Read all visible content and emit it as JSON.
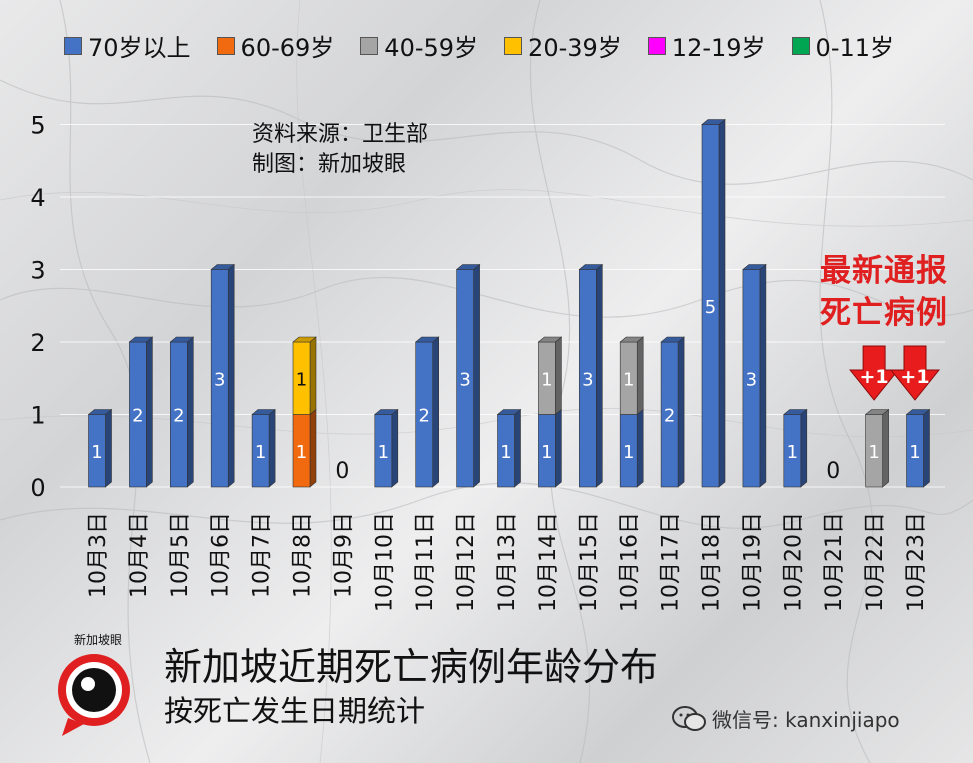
{
  "chart_data": {
    "type": "bar",
    "stacked": true,
    "categories": [
      "10月3日",
      "10月4日",
      "10月5日",
      "10月6日",
      "10月7日",
      "10月8日",
      "10月9日",
      "10月10日",
      "10月11日",
      "10月12日",
      "10月13日",
      "10月14日",
      "10月15日",
      "10月16日",
      "10月17日",
      "10月18日",
      "10月19日",
      "10月20日",
      "10月21日",
      "10月22日",
      "10月23日"
    ],
    "series": [
      {
        "name": "70岁以上",
        "color": "#4472c4",
        "values": [
          1,
          2,
          2,
          3,
          1,
          0,
          0,
          1,
          2,
          3,
          1,
          1,
          3,
          1,
          2,
          5,
          3,
          1,
          0,
          0,
          1
        ]
      },
      {
        "name": "60-69岁",
        "color": "#f26a10",
        "values": [
          0,
          0,
          0,
          0,
          0,
          1,
          0,
          0,
          0,
          0,
          0,
          0,
          0,
          0,
          0,
          0,
          0,
          0,
          0,
          0,
          0
        ]
      },
      {
        "name": "40-59岁",
        "color": "#a5a5a5",
        "values": [
          0,
          0,
          0,
          0,
          0,
          0,
          0,
          0,
          0,
          0,
          0,
          1,
          0,
          1,
          0,
          0,
          0,
          0,
          0,
          1,
          0
        ]
      },
      {
        "name": "20-39岁",
        "color": "#ffc000",
        "values": [
          0,
          0,
          0,
          0,
          0,
          1,
          0,
          0,
          0,
          0,
          0,
          0,
          0,
          0,
          0,
          0,
          0,
          0,
          0,
          0,
          0
        ]
      },
      {
        "name": "12-19岁",
        "color": "#ff00ff",
        "values": [
          0,
          0,
          0,
          0,
          0,
          0,
          0,
          0,
          0,
          0,
          0,
          0,
          0,
          0,
          0,
          0,
          0,
          0,
          0,
          0,
          0
        ]
      },
      {
        "name": "0-11岁",
        "color": "#00a651",
        "values": [
          0,
          0,
          0,
          0,
          0,
          0,
          0,
          0,
          0,
          0,
          0,
          0,
          0,
          0,
          0,
          0,
          0,
          0,
          0,
          0,
          0
        ]
      }
    ],
    "zero_labels": [
      "0",
      "0"
    ],
    "yticks": [
      "0",
      "1",
      "2",
      "3",
      "4",
      "5"
    ],
    "ylim": [
      0,
      5
    ],
    "legend_position": "top",
    "arrow_labels": [
      "+1",
      "+1"
    ],
    "arrow_categories": [
      "10月22日",
      "10月23日"
    ]
  },
  "annotations": {
    "source_line1": "资料来源：卫生部",
    "source_line2": "制图：新加坡眼",
    "alert_line1": "最新通报",
    "alert_line2": "死亡病例"
  },
  "titles": {
    "main": "新加坡近期死亡病例年龄分布",
    "sub": "按死亡发生日期统计"
  },
  "branding": {
    "logo_text": "新加坡眼",
    "watermark": "微信号: kanxinjiapo"
  }
}
